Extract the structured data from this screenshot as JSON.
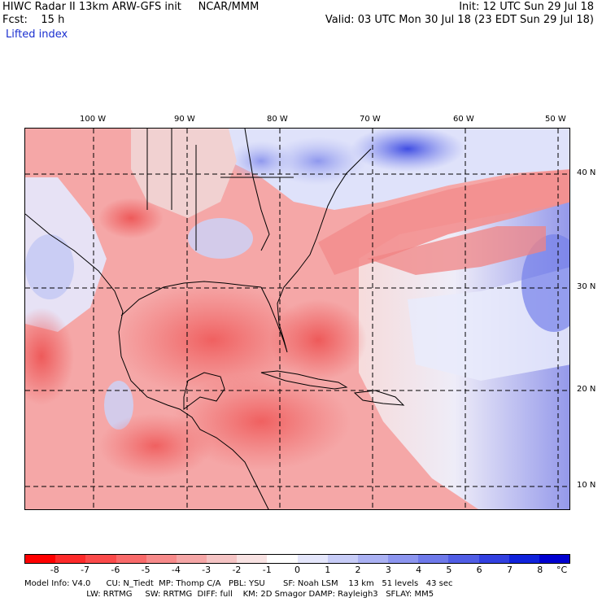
{
  "header": {
    "line1_left": "HIWC Radar II 13km ARW-GFS init     NCAR/MMM",
    "line1_right": "Init: 12 UTC Sun 29 Jul 18",
    "line2_left": "Fcst:    15 h",
    "line2_right": "Valid: 03 UTC Mon 30 Jul 18 (23 EDT Sun 29 Jul 18)",
    "field_name": "Lifted index"
  },
  "map": {
    "longitude_labels": [
      "100 W",
      "90 W",
      "80 W",
      "70 W",
      "60 W",
      "50 W"
    ],
    "latitude_labels": [
      "40 N",
      "30 N",
      "20 N",
      "10 N"
    ],
    "region": "Gulf of Mexico, Caribbean, eastern US and western Atlantic",
    "field_pattern": "red (negative lifted index) over Gulf, Caribbean, Florida, Southeast US and Mexico; blue (positive) over Great Lakes, Northeast US, North Atlantic east of 55W and off Baja"
  },
  "colorbar": {
    "unit": "°C",
    "tick_labels": [
      "-8",
      "-7",
      "-6",
      "-5",
      "-4",
      "-3",
      "-2",
      "-1",
      "0",
      "1",
      "2",
      "3",
      "4",
      "5",
      "6",
      "7",
      "8"
    ],
    "colors": [
      "#ff0000",
      "#fd2a2a",
      "#fb4a4a",
      "#f96a6a",
      "#f78a8a",
      "#f5a6a6",
      "#f5c4c4",
      "#f8e2e2",
      "#ffffff",
      "#e4e6fb",
      "#c7ccf7",
      "#aab1f3",
      "#8c95ef",
      "#6e79ea",
      "#505de5",
      "#3240e0",
      "#1022db",
      "#0000d0"
    ]
  },
  "model_info": {
    "line1": "Model Info: V4.0      CU: N_Tiedt  MP: Thomp C/A   PBL: YSU       SF: Noah LSM    13 km   51 levels   43 sec",
    "line2": "                        LW: RRTMG     SW: RRTMG  DIFF: full    KM: 2D Smagor DAMP: Rayleigh3   SFLAY: MM5"
  }
}
